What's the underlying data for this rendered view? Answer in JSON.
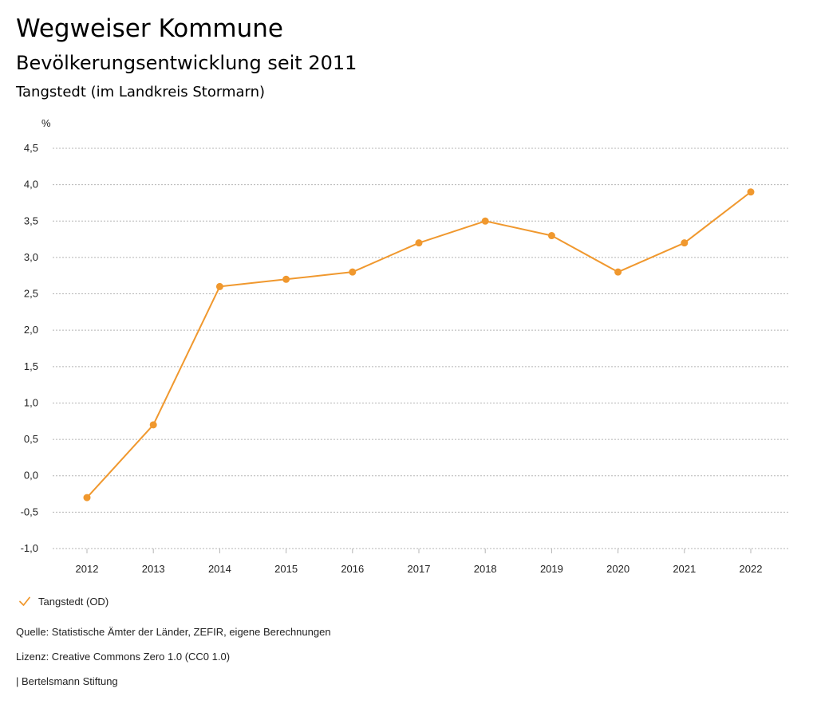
{
  "header": {
    "title": "Wegweiser Kommune",
    "subtitle": "Bevölkerungsentwicklung seit 2011",
    "region": "Tangstedt (im Landkreis Stormarn)"
  },
  "footer": {
    "source": "Quelle: Statistische Ämter der Länder, ZEFIR, eigene Berechnungen",
    "license": "Lizenz: Creative Commons Zero 1.0 (CC0 1.0)",
    "publisher": "| Bertelsmann Stiftung"
  },
  "colors": {
    "series": "#f0982e",
    "grid": "#b5b5b5"
  },
  "chart_data": {
    "type": "line",
    "title": "Bevölkerungsentwicklung seit 2011",
    "ylabel": "%",
    "xlabel": "",
    "categories": [
      "2012",
      "2013",
      "2014",
      "2015",
      "2016",
      "2017",
      "2018",
      "2019",
      "2020",
      "2021",
      "2022"
    ],
    "series": [
      {
        "name": "Tangstedt (OD)",
        "values": [
          -0.3,
          0.7,
          2.6,
          2.7,
          2.8,
          3.2,
          3.5,
          3.3,
          2.8,
          3.2,
          3.9
        ]
      }
    ],
    "ylim": [
      -1.0,
      4.5
    ],
    "yticks": [
      -1.0,
      -0.5,
      0.0,
      0.5,
      1.0,
      1.5,
      2.0,
      2.5,
      3.0,
      3.5,
      4.0,
      4.5
    ],
    "ytick_labels": [
      "-1,0",
      "-0,5",
      "0,0",
      "0,5",
      "1,0",
      "1,5",
      "2,0",
      "2,5",
      "3,0",
      "3,5",
      "4,0",
      "4,5"
    ],
    "grid": true,
    "grid_style": "dotted",
    "legend": "bottom-left"
  }
}
